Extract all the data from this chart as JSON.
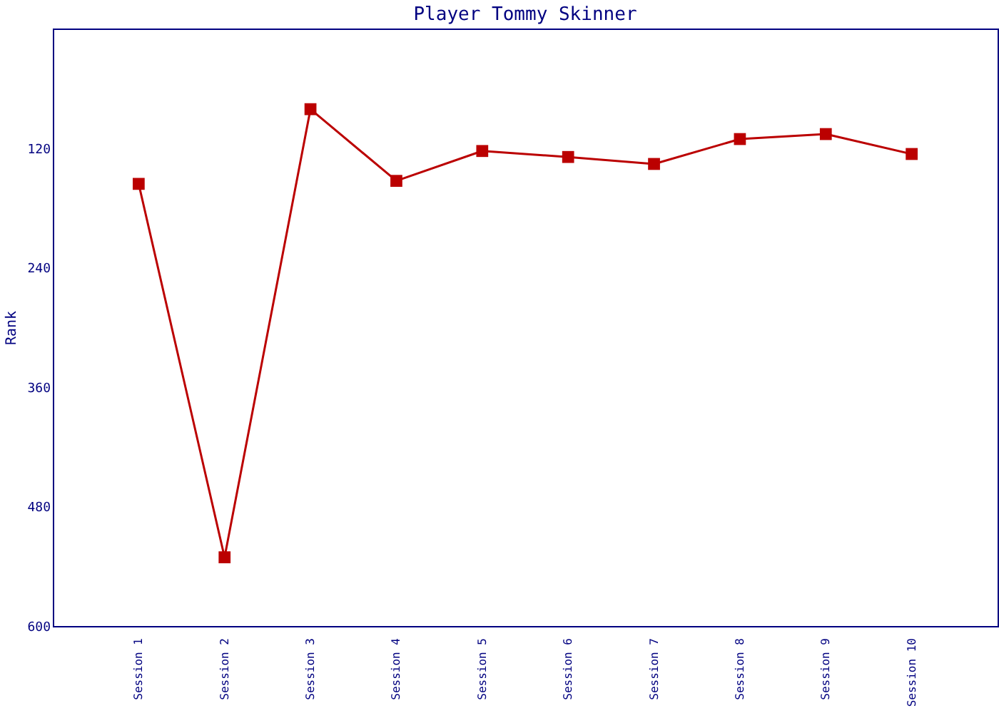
{
  "chart_data": {
    "type": "line",
    "title": "Player Tommy Skinner",
    "ylabel": "Rank",
    "categories": [
      "Session 1",
      "Session 2",
      "Session 3",
      "Session 4",
      "Session 5",
      "Session 6",
      "Session 7",
      "Session 8",
      "Session 9",
      "Session 10"
    ],
    "series": [
      {
        "color": "#bb0000",
        "values": [
          156,
          531,
          81,
          153,
          123,
          129,
          136,
          111,
          106,
          126
        ]
      }
    ],
    "ylim": [
      600,
      0
    ],
    "yticks": [
      120,
      240,
      360,
      480,
      600
    ],
    "grid": false,
    "marker": "square",
    "line_style": "solid"
  }
}
